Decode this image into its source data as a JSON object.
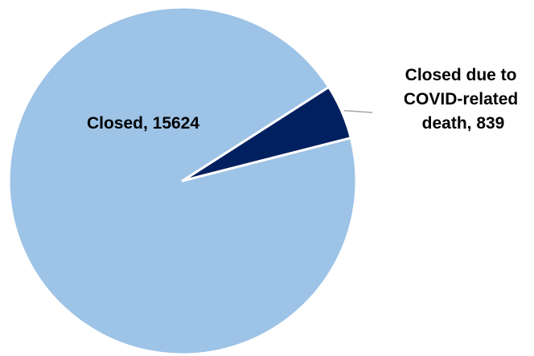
{
  "chart_data": {
    "type": "pie",
    "title": "",
    "slices": [
      {
        "category": "Closed",
        "value": 15624,
        "label_lines": [
          "Closed, 15624"
        ],
        "color": "#9dc3e6"
      },
      {
        "category": "Closed due to COVID-related death",
        "value": 839,
        "label_lines": [
          "Closed due to",
          "COVID-related",
          "death, 839"
        ],
        "color": "#002060"
      }
    ],
    "legend": "none"
  }
}
